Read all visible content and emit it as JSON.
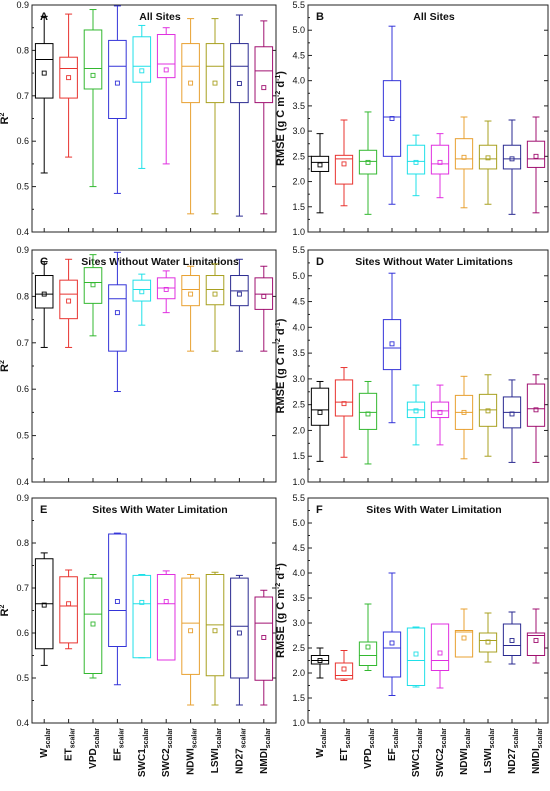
{
  "categories": [
    {
      "main": "W",
      "sub": "scalar"
    },
    {
      "main": "ET",
      "sub": "scalar"
    },
    {
      "main": "VPD",
      "sub": "scalar"
    },
    {
      "main": "EF",
      "sub": "scalar"
    },
    {
      "main": "SWC1",
      "sub": "scalar"
    },
    {
      "main": "SWC2",
      "sub": "scalar"
    },
    {
      "main": "NDWI",
      "sub": "scalar"
    },
    {
      "main": "LSWI",
      "sub": "scalar"
    },
    {
      "main": "ND27",
      "sub": "scalar"
    },
    {
      "main": "NMDI",
      "sub": "scalar"
    }
  ],
  "colors": [
    "#000000",
    "#e8332f",
    "#33b830",
    "#3434d8",
    "#1fe0e8",
    "#e030e0",
    "#e8a030",
    "#a8a020",
    "#2a2a90",
    "#a01070"
  ],
  "chart_data": [
    {
      "type": "box",
      "letter": "A",
      "title": "All Sites",
      "ylabel": "R",
      "ylabel_sup": "2",
      "ylabel_tail": "",
      "ylim": [
        0.4,
        0.9
      ],
      "yticks": [
        "0.4",
        "0.5",
        "0.6",
        "0.7",
        "0.8",
        "0.9"
      ],
      "boxes": [
        {
          "min": 0.53,
          "q1": 0.695,
          "median": 0.78,
          "q3": 0.815,
          "max": 0.875,
          "mean": 0.75
        },
        {
          "min": 0.565,
          "q1": 0.695,
          "median": 0.76,
          "q3": 0.785,
          "max": 0.88,
          "mean": 0.74
        },
        {
          "min": 0.5,
          "q1": 0.715,
          "median": 0.76,
          "q3": 0.845,
          "max": 0.89,
          "mean": 0.745
        },
        {
          "min": 0.485,
          "q1": 0.65,
          "median": 0.765,
          "q3": 0.822,
          "max": 0.898,
          "mean": 0.728
        },
        {
          "min": 0.54,
          "q1": 0.73,
          "median": 0.765,
          "q3": 0.83,
          "max": 0.855,
          "mean": 0.755
        },
        {
          "min": 0.55,
          "q1": 0.74,
          "median": 0.77,
          "q3": 0.835,
          "max": 0.85,
          "mean": 0.757
        },
        {
          "min": 0.44,
          "q1": 0.685,
          "median": 0.765,
          "q3": 0.815,
          "max": 0.87,
          "mean": 0.728
        },
        {
          "min": 0.44,
          "q1": 0.685,
          "median": 0.765,
          "q3": 0.815,
          "max": 0.87,
          "mean": 0.728
        },
        {
          "min": 0.435,
          "q1": 0.685,
          "median": 0.765,
          "q3": 0.815,
          "max": 0.878,
          "mean": 0.727
        },
        {
          "min": 0.44,
          "q1": 0.685,
          "median": 0.755,
          "q3": 0.808,
          "max": 0.865,
          "mean": 0.718
        }
      ]
    },
    {
      "type": "box",
      "letter": "B",
      "title": "All Sites",
      "ylabel": "RMSE (g C m",
      "ylabel_sup": "-2",
      "ylabel_tail": " d",
      "ylabel_sup2": "-1",
      "ylabel_end": ")",
      "ylim": [
        1.0,
        5.5
      ],
      "yticks": [
        "1.0",
        "1.5",
        "2.0",
        "2.5",
        "3.0",
        "3.5",
        "4.0",
        "4.5",
        "5.0",
        "5.5"
      ],
      "boxes": [
        {
          "min": 1.38,
          "q1": 2.2,
          "median": 2.38,
          "q3": 2.5,
          "max": 2.95,
          "mean": 2.33
        },
        {
          "min": 1.52,
          "q1": 1.95,
          "median": 2.45,
          "q3": 2.52,
          "max": 3.22,
          "mean": 2.35
        },
        {
          "min": 1.35,
          "q1": 2.15,
          "median": 2.4,
          "q3": 2.62,
          "max": 3.38,
          "mean": 2.38
        },
        {
          "min": 1.55,
          "q1": 2.5,
          "median": 3.28,
          "q3": 4.0,
          "max": 5.08,
          "mean": 3.25
        },
        {
          "min": 1.72,
          "q1": 2.15,
          "median": 2.4,
          "q3": 2.72,
          "max": 2.92,
          "mean": 2.38
        },
        {
          "min": 1.68,
          "q1": 2.15,
          "median": 2.35,
          "q3": 2.72,
          "max": 2.95,
          "mean": 2.38
        },
        {
          "min": 1.48,
          "q1": 2.25,
          "median": 2.45,
          "q3": 2.85,
          "max": 3.28,
          "mean": 2.48
        },
        {
          "min": 1.55,
          "q1": 2.25,
          "median": 2.45,
          "q3": 2.72,
          "max": 3.2,
          "mean": 2.47
        },
        {
          "min": 1.35,
          "q1": 2.25,
          "median": 2.45,
          "q3": 2.72,
          "max": 3.22,
          "mean": 2.45
        },
        {
          "min": 1.38,
          "q1": 2.28,
          "median": 2.45,
          "q3": 2.8,
          "max": 3.28,
          "mean": 2.5
        }
      ]
    },
    {
      "type": "box",
      "letter": "C",
      "title": "Sites Without Water Limitations",
      "ylabel": "R",
      "ylabel_sup": "2",
      "ylabel_tail": "",
      "ylim": [
        0.4,
        0.9
      ],
      "yticks": [
        "0.4",
        "0.5",
        "0.6",
        "0.7",
        "0.8",
        "0.9"
      ],
      "boxes": [
        {
          "min": 0.69,
          "q1": 0.775,
          "median": 0.805,
          "q3": 0.845,
          "max": 0.875,
          "mean": 0.805
        },
        {
          "min": 0.69,
          "q1": 0.752,
          "median": 0.805,
          "q3": 0.835,
          "max": 0.88,
          "mean": 0.79
        },
        {
          "min": 0.715,
          "q1": 0.785,
          "median": 0.83,
          "q3": 0.862,
          "max": 0.89,
          "mean": 0.825
        },
        {
          "min": 0.595,
          "q1": 0.682,
          "median": 0.795,
          "q3": 0.825,
          "max": 0.895,
          "mean": 0.765
        },
        {
          "min": 0.738,
          "q1": 0.79,
          "median": 0.815,
          "q3": 0.835,
          "max": 0.848,
          "mean": 0.81
        },
        {
          "min": 0.765,
          "q1": 0.795,
          "median": 0.818,
          "q3": 0.84,
          "max": 0.855,
          "mean": 0.815
        },
        {
          "min": 0.682,
          "q1": 0.78,
          "median": 0.815,
          "q3": 0.845,
          "max": 0.865,
          "mean": 0.805
        },
        {
          "min": 0.682,
          "q1": 0.782,
          "median": 0.815,
          "q3": 0.845,
          "max": 0.87,
          "mean": 0.805
        },
        {
          "min": 0.682,
          "q1": 0.78,
          "median": 0.812,
          "q3": 0.845,
          "max": 0.88,
          "mean": 0.805
        },
        {
          "min": 0.682,
          "q1": 0.772,
          "median": 0.805,
          "q3": 0.84,
          "max": 0.865,
          "mean": 0.8
        }
      ]
    },
    {
      "type": "box",
      "letter": "D",
      "title": "Sites Without Water Limitations",
      "ylabel": "RMSE (g C m",
      "ylabel_sup": "-2",
      "ylabel_tail": " d",
      "ylabel_sup2": "-1",
      "ylabel_end": ")",
      "ylim": [
        1.0,
        5.5
      ],
      "yticks": [
        "1.0",
        "1.5",
        "2.0",
        "2.5",
        "3.0",
        "3.5",
        "4.0",
        "4.5",
        "5.0",
        "5.5"
      ],
      "boxes": [
        {
          "min": 1.4,
          "q1": 2.1,
          "median": 2.4,
          "q3": 2.82,
          "max": 2.95,
          "mean": 2.35
        },
        {
          "min": 1.48,
          "q1": 2.28,
          "median": 2.55,
          "q3": 2.98,
          "max": 3.22,
          "mean": 2.52
        },
        {
          "min": 1.35,
          "q1": 2.02,
          "median": 2.35,
          "q3": 2.72,
          "max": 2.95,
          "mean": 2.32
        },
        {
          "min": 2.15,
          "q1": 3.18,
          "median": 3.6,
          "q3": 4.15,
          "max": 5.05,
          "mean": 3.68
        },
        {
          "min": 1.72,
          "q1": 2.25,
          "median": 2.4,
          "q3": 2.55,
          "max": 2.88,
          "mean": 2.38
        },
        {
          "min": 1.72,
          "q1": 2.25,
          "median": 2.38,
          "q3": 2.55,
          "max": 2.88,
          "mean": 2.35
        },
        {
          "min": 1.45,
          "q1": 2.02,
          "median": 2.35,
          "q3": 2.68,
          "max": 3.05,
          "mean": 2.35
        },
        {
          "min": 1.5,
          "q1": 2.08,
          "median": 2.4,
          "q3": 2.7,
          "max": 3.08,
          "mean": 2.38
        },
        {
          "min": 1.38,
          "q1": 2.05,
          "median": 2.35,
          "q3": 2.65,
          "max": 2.98,
          "mean": 2.32
        },
        {
          "min": 1.38,
          "q1": 2.08,
          "median": 2.42,
          "q3": 2.9,
          "max": 3.08,
          "mean": 2.4
        }
      ]
    },
    {
      "type": "box",
      "letter": "E",
      "title": "Sites With Water Limitation",
      "ylabel": "R",
      "ylabel_sup": "2",
      "ylabel_tail": "",
      "ylim": [
        0.4,
        0.9
      ],
      "yticks": [
        "0.4",
        "0.5",
        "0.6",
        "0.7",
        "0.8",
        "0.9"
      ],
      "boxes": [
        {
          "min": 0.528,
          "q1": 0.565,
          "median": 0.665,
          "q3": 0.765,
          "max": 0.778,
          "mean": 0.662
        },
        {
          "min": 0.565,
          "q1": 0.578,
          "median": 0.66,
          "q3": 0.725,
          "max": 0.74,
          "mean": 0.665
        },
        {
          "min": 0.5,
          "q1": 0.51,
          "median": 0.642,
          "q3": 0.722,
          "max": 0.73,
          "mean": 0.62
        },
        {
          "min": 0.485,
          "q1": 0.57,
          "median": 0.65,
          "q3": 0.82,
          "max": 0.822,
          "mean": 0.67
        },
        {
          "min": 0.545,
          "q1": 0.545,
          "median": 0.665,
          "q3": 0.728,
          "max": 0.73,
          "mean": 0.668
        },
        {
          "min": 0.54,
          "q1": 0.54,
          "median": 0.665,
          "q3": 0.73,
          "max": 0.738,
          "mean": 0.67
        },
        {
          "min": 0.44,
          "q1": 0.508,
          "median": 0.622,
          "q3": 0.722,
          "max": 0.73,
          "mean": 0.605
        },
        {
          "min": 0.44,
          "q1": 0.505,
          "median": 0.618,
          "q3": 0.73,
          "max": 0.735,
          "mean": 0.605
        },
        {
          "min": 0.44,
          "q1": 0.5,
          "median": 0.615,
          "q3": 0.722,
          "max": 0.728,
          "mean": 0.6
        },
        {
          "min": 0.44,
          "q1": 0.495,
          "median": 0.622,
          "q3": 0.68,
          "max": 0.695,
          "mean": 0.59
        }
      ]
    },
    {
      "type": "box",
      "letter": "F",
      "title": "Sites With Water Limitation",
      "ylabel": "RMSE (g C m",
      "ylabel_sup": "-2",
      "ylabel_tail": " d",
      "ylabel_sup2": "-1",
      "ylabel_end": ")",
      "ylim": [
        1.0,
        5.5
      ],
      "yticks": [
        "1.0",
        "1.5",
        "2.0",
        "2.5",
        "3.0",
        "3.5",
        "4.0",
        "4.5",
        "5.0",
        "5.5"
      ],
      "boxes": [
        {
          "min": 1.9,
          "q1": 2.18,
          "median": 2.25,
          "q3": 2.35,
          "max": 2.5,
          "mean": 2.25
        },
        {
          "min": 1.85,
          "q1": 1.88,
          "median": 1.95,
          "q3": 2.2,
          "max": 2.45,
          "mean": 2.08
        },
        {
          "min": 2.05,
          "q1": 2.15,
          "median": 2.35,
          "q3": 2.62,
          "max": 3.38,
          "mean": 2.52
        },
        {
          "min": 1.55,
          "q1": 1.92,
          "median": 2.5,
          "q3": 2.82,
          "max": 4.0,
          "mean": 2.6
        },
        {
          "min": 1.72,
          "q1": 1.75,
          "median": 2.25,
          "q3": 2.9,
          "max": 2.92,
          "mean": 2.38
        },
        {
          "min": 1.7,
          "q1": 2.05,
          "median": 2.25,
          "q3": 2.98,
          "max": 2.98,
          "mean": 2.4
        },
        {
          "min": 2.32,
          "q1": 2.32,
          "median": 2.82,
          "q3": 2.85,
          "max": 3.28,
          "mean": 2.7
        },
        {
          "min": 2.22,
          "q1": 2.42,
          "median": 2.65,
          "q3": 2.8,
          "max": 3.2,
          "mean": 2.62
        },
        {
          "min": 2.18,
          "q1": 2.35,
          "median": 2.55,
          "q3": 2.98,
          "max": 3.22,
          "mean": 2.65
        },
        {
          "min": 2.2,
          "q1": 2.35,
          "median": 2.75,
          "q3": 2.8,
          "max": 3.28,
          "mean": 2.65
        }
      ]
    }
  ]
}
